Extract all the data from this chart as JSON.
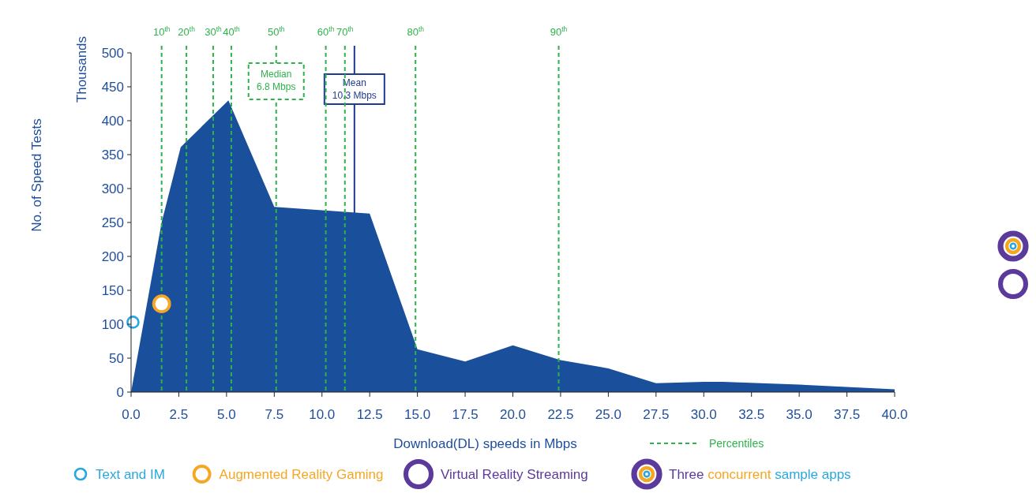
{
  "chart_data": {
    "type": "area",
    "xlabel": "Download(DL) speeds in Mbps",
    "ylabel": "No. of Speed Tests",
    "x": [
      0,
      1.6,
      2.6,
      5.1,
      7.5,
      12.5,
      15,
      17.5,
      20,
      22.5,
      25,
      27.5,
      30,
      31,
      35,
      40
    ],
    "series": [
      {
        "color": "#1a4f9c",
        "values": [
          0,
          250,
          361,
          430,
          273,
          263,
          63,
          45,
          69,
          47,
          35,
          13,
          15,
          15,
          11,
          4
        ]
      },
      {
        "type": "scatter",
        "name": "Text and IM",
        "color": "#29a8e0",
        "marker": "circle",
        "x": [
          0.1
        ],
        "values": [
          103
        ]
      },
      {
        "type": "scatter",
        "name": "Augmented Reality Gaming",
        "color": "#f5a623",
        "marker": "circle",
        "x": [
          1.6
        ],
        "values": [
          130
        ]
      },
      {
        "type": "scatter",
        "name": "Virtual Reality Streaming",
        "color": "#5b3a9b",
        "marker": "circle",
        "values": [
          null,
          null,
          null,
          null,
          null,
          null,
          null,
          null,
          null,
          null,
          null,
          null,
          null,
          null,
          null,
          null
        ]
      },
      {
        "type": "scatter",
        "name": "Three concurrent sample apps",
        "color": "#5b3a9b",
        "marker": "circle",
        "values": [
          null,
          null,
          null,
          null,
          null,
          null,
          null,
          null,
          null,
          null,
          null,
          null,
          null,
          null,
          null,
          null
        ]
      }
    ],
    "xlim": [
      0,
      40
    ],
    "ylim": [
      0,
      500
    ],
    "xticks": [
      {
        "value": 0,
        "label": "0.0"
      },
      2.5,
      {
        "value": 5,
        "label": "5.0"
      },
      7.5,
      {
        "value": 10,
        "label": "10.0"
      },
      12.5,
      {
        "value": 15,
        "label": "15.0"
      },
      17.5,
      {
        "value": 20,
        "label": "20.0"
      },
      22.5,
      {
        "value": 25,
        "label": "25.0"
      },
      27.5,
      {
        "value": 30,
        "label": "30.0"
      },
      32.5,
      {
        "value": 35,
        "label": "35.0"
      },
      37.5,
      {
        "value": 40,
        "label": "40.0"
      }
    ],
    "yticks": [
      0,
      50,
      100,
      150,
      200,
      250,
      300,
      350,
      400,
      450,
      500
    ],
    "grid": false,
    "legend": "bottom",
    "ref_lines": [
      {
        "axis": "x",
        "value": 1.6,
        "label": "10$^{th}$",
        "color": "#2db34a",
        "line_style": "dashed"
      },
      {
        "axis": "x",
        "value": 2.9,
        "label": "20$^{th}$",
        "color": "#2db34a",
        "line_style": "dashed"
      },
      {
        "axis": "x",
        "value": 4.3,
        "label": "30$^{th}$",
        "color": "#2db34a",
        "line_style": "dashed"
      },
      {
        "axis": "x",
        "value": 5.25,
        "label": "40$^{th}$",
        "color": "#2db34a",
        "line_style": "dashed"
      },
      {
        "axis": "x",
        "value": 7.6,
        "label": "50$^{th}$",
        "color": "#2db34a",
        "line_style": "dashed"
      },
      {
        "axis": "x",
        "value": 10.2,
        "label": "60$^{th}$",
        "color": "#2db34a",
        "line_style": "dashed"
      },
      {
        "axis": "x",
        "value": 11.2,
        "label": "70$^{th}$",
        "color": "#2db34a",
        "line_style": "dashed"
      },
      {
        "axis": "x",
        "value": 14.9,
        "label": "80$^{th}$",
        "color": "#2db34a",
        "line_style": "dashed"
      },
      {
        "axis": "x",
        "value": 22.4,
        "label": "90$^{th}$",
        "color": "#2db34a",
        "line_style": "dashed"
      },
      {
        "axis": "x",
        "value": 11.7,
        "label": "Mean\n10.3 Mbps",
        "color": "#1f3a93",
        "line_style": "solid"
      }
    ],
    "annotations": [
      "Thousands",
      "Percentiles",
      {
        "text": "Median\n6.8 Mbps",
        "x": 7.6,
        "y": 450
      }
    ]
  }
}
